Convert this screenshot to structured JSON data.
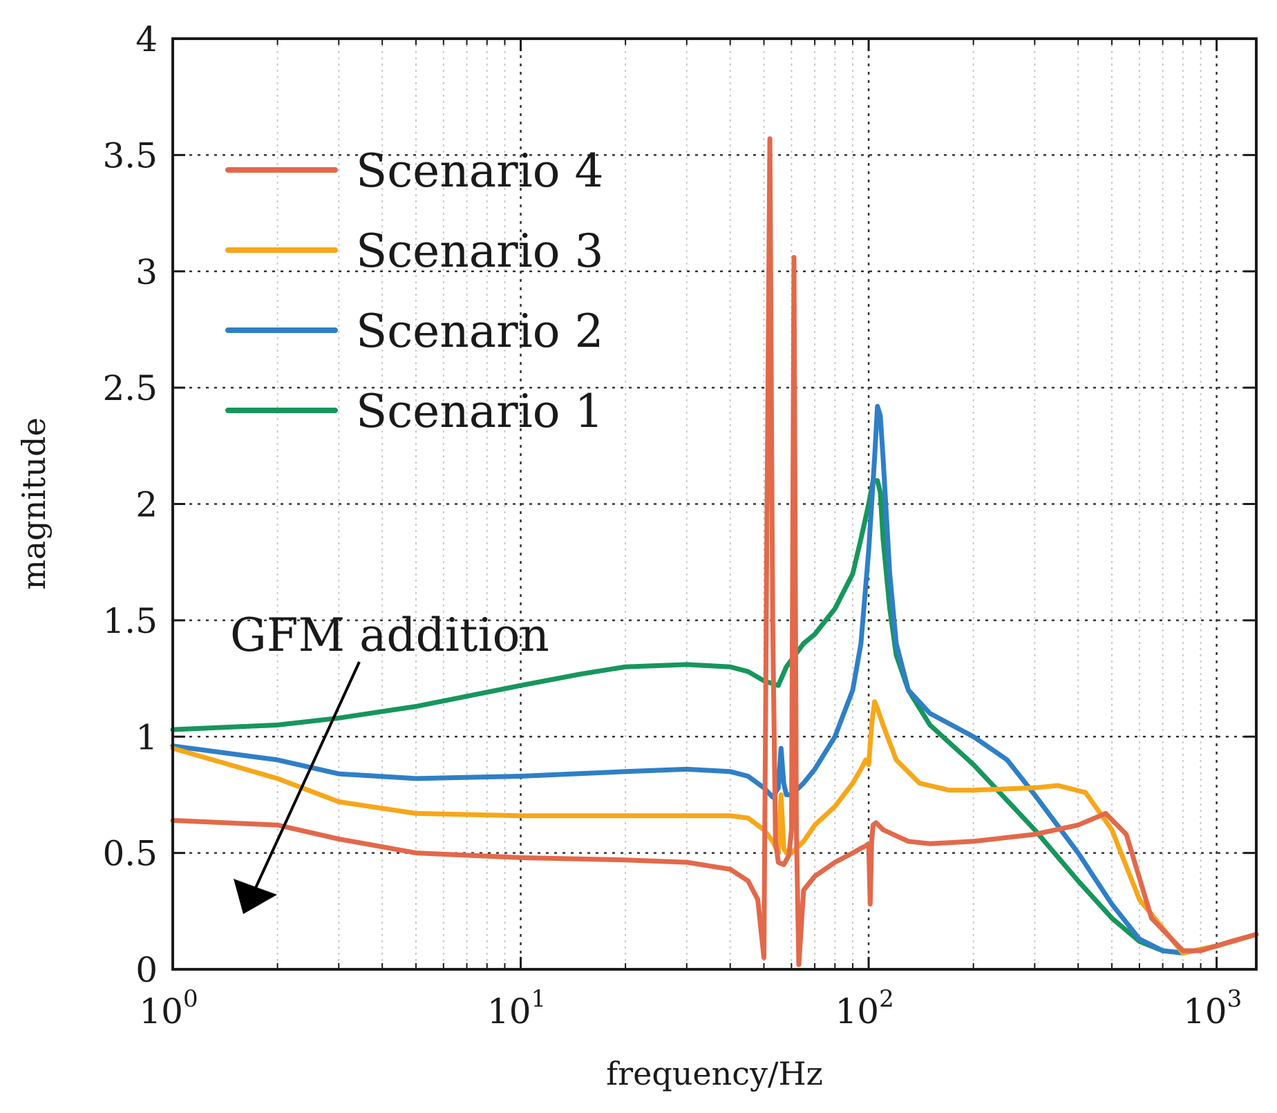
{
  "chart_data": {
    "type": "line",
    "title": "",
    "xlabel": "frequency/Hz",
    "ylabel": "magnitude",
    "xscale": "log",
    "xlim": [
      1,
      1300
    ],
    "ylim": [
      0,
      4
    ],
    "y_ticks": [
      "0",
      "0.5",
      "1",
      "1.5",
      "2",
      "2.5",
      "3",
      "3.5",
      "4"
    ],
    "x_ticks": [
      {
        "base": "10",
        "exp": "0"
      },
      {
        "base": "10",
        "exp": "1"
      },
      {
        "base": "10",
        "exp": "2"
      },
      {
        "base": "10",
        "exp": "3"
      }
    ],
    "grid": true,
    "legend_position": "top-left",
    "annotation": {
      "text": "GFM addition",
      "arrow": "points down-left toward lower curves at 1–2 Hz"
    },
    "series": [
      {
        "name": "Scenario 4",
        "color": "#e2694a",
        "x": [
          1,
          2,
          3,
          5,
          10,
          20,
          30,
          40,
          45,
          48,
          50,
          51,
          52,
          53,
          54,
          55,
          57,
          59,
          60,
          61,
          62,
          63,
          65,
          70,
          80,
          90,
          95,
          98,
          100,
          101,
          102,
          103,
          105,
          110,
          130,
          150,
          200,
          300,
          400,
          480,
          550,
          650,
          800,
          900,
          1100,
          1300
        ],
        "values": [
          0.64,
          0.62,
          0.56,
          0.5,
          0.48,
          0.47,
          0.46,
          0.43,
          0.38,
          0.3,
          0.05,
          1.9,
          3.57,
          1.5,
          0.55,
          0.46,
          0.45,
          0.49,
          0.6,
          3.06,
          0.6,
          0.02,
          0.34,
          0.4,
          0.46,
          0.5,
          0.52,
          0.53,
          0.54,
          0.28,
          0.55,
          0.62,
          0.63,
          0.6,
          0.55,
          0.54,
          0.55,
          0.58,
          0.62,
          0.67,
          0.58,
          0.22,
          0.08,
          0.08,
          0.12,
          0.15
        ]
      },
      {
        "name": "Scenario 3",
        "color": "#f6a71a",
        "x": [
          1,
          2,
          3,
          5,
          10,
          20,
          30,
          40,
          45,
          50,
          53,
          55,
          56,
          57,
          58,
          60,
          65,
          70,
          80,
          90,
          95,
          98,
          100,
          102,
          104,
          106,
          110,
          120,
          140,
          170,
          200,
          300,
          350,
          420,
          500,
          600,
          800,
          1000,
          1300
        ],
        "values": [
          0.95,
          0.82,
          0.72,
          0.67,
          0.66,
          0.66,
          0.66,
          0.66,
          0.65,
          0.6,
          0.55,
          0.5,
          0.75,
          0.52,
          0.5,
          0.5,
          0.55,
          0.62,
          0.7,
          0.8,
          0.86,
          0.9,
          0.88,
          1.05,
          1.15,
          1.12,
          1.05,
          0.9,
          0.8,
          0.77,
          0.77,
          0.78,
          0.79,
          0.76,
          0.6,
          0.3,
          0.07,
          0.1,
          0.15
        ]
      },
      {
        "name": "Scenario 2",
        "color": "#2f7fc6",
        "x": [
          1,
          2,
          3,
          5,
          10,
          20,
          30,
          40,
          45,
          50,
          53,
          55,
          56,
          57,
          58,
          60,
          65,
          70,
          80,
          90,
          95,
          100,
          104,
          106,
          108,
          110,
          115,
          120,
          130,
          150,
          200,
          250,
          300,
          400,
          500,
          600,
          700,
          800,
          1000,
          1300
        ],
        "values": [
          0.96,
          0.9,
          0.84,
          0.82,
          0.83,
          0.85,
          0.86,
          0.85,
          0.83,
          0.78,
          0.74,
          0.78,
          0.95,
          0.8,
          0.75,
          0.75,
          0.8,
          0.86,
          1.0,
          1.2,
          1.4,
          1.8,
          2.2,
          2.42,
          2.38,
          2.2,
          1.7,
          1.4,
          1.2,
          1.1,
          1.0,
          0.9,
          0.75,
          0.5,
          0.28,
          0.13,
          0.08,
          0.07,
          0.1,
          0.15
        ]
      },
      {
        "name": "Scenario 1",
        "color": "#17965c",
        "x": [
          1,
          2,
          3,
          5,
          10,
          15,
          20,
          30,
          40,
          45,
          50,
          55,
          58,
          60,
          65,
          70,
          80,
          90,
          95,
          100,
          103,
          106,
          108,
          110,
          115,
          120,
          130,
          150,
          200,
          300,
          400,
          500,
          600,
          700,
          800,
          1000,
          1300
        ],
        "values": [
          1.03,
          1.05,
          1.08,
          1.13,
          1.22,
          1.27,
          1.3,
          1.31,
          1.3,
          1.28,
          1.24,
          1.22,
          1.3,
          1.33,
          1.4,
          1.44,
          1.55,
          1.7,
          1.85,
          2.0,
          2.1,
          2.1,
          2.05,
          1.85,
          1.55,
          1.35,
          1.2,
          1.05,
          0.88,
          0.6,
          0.38,
          0.22,
          0.12,
          0.08,
          0.07,
          0.1,
          0.15
        ]
      }
    ]
  }
}
